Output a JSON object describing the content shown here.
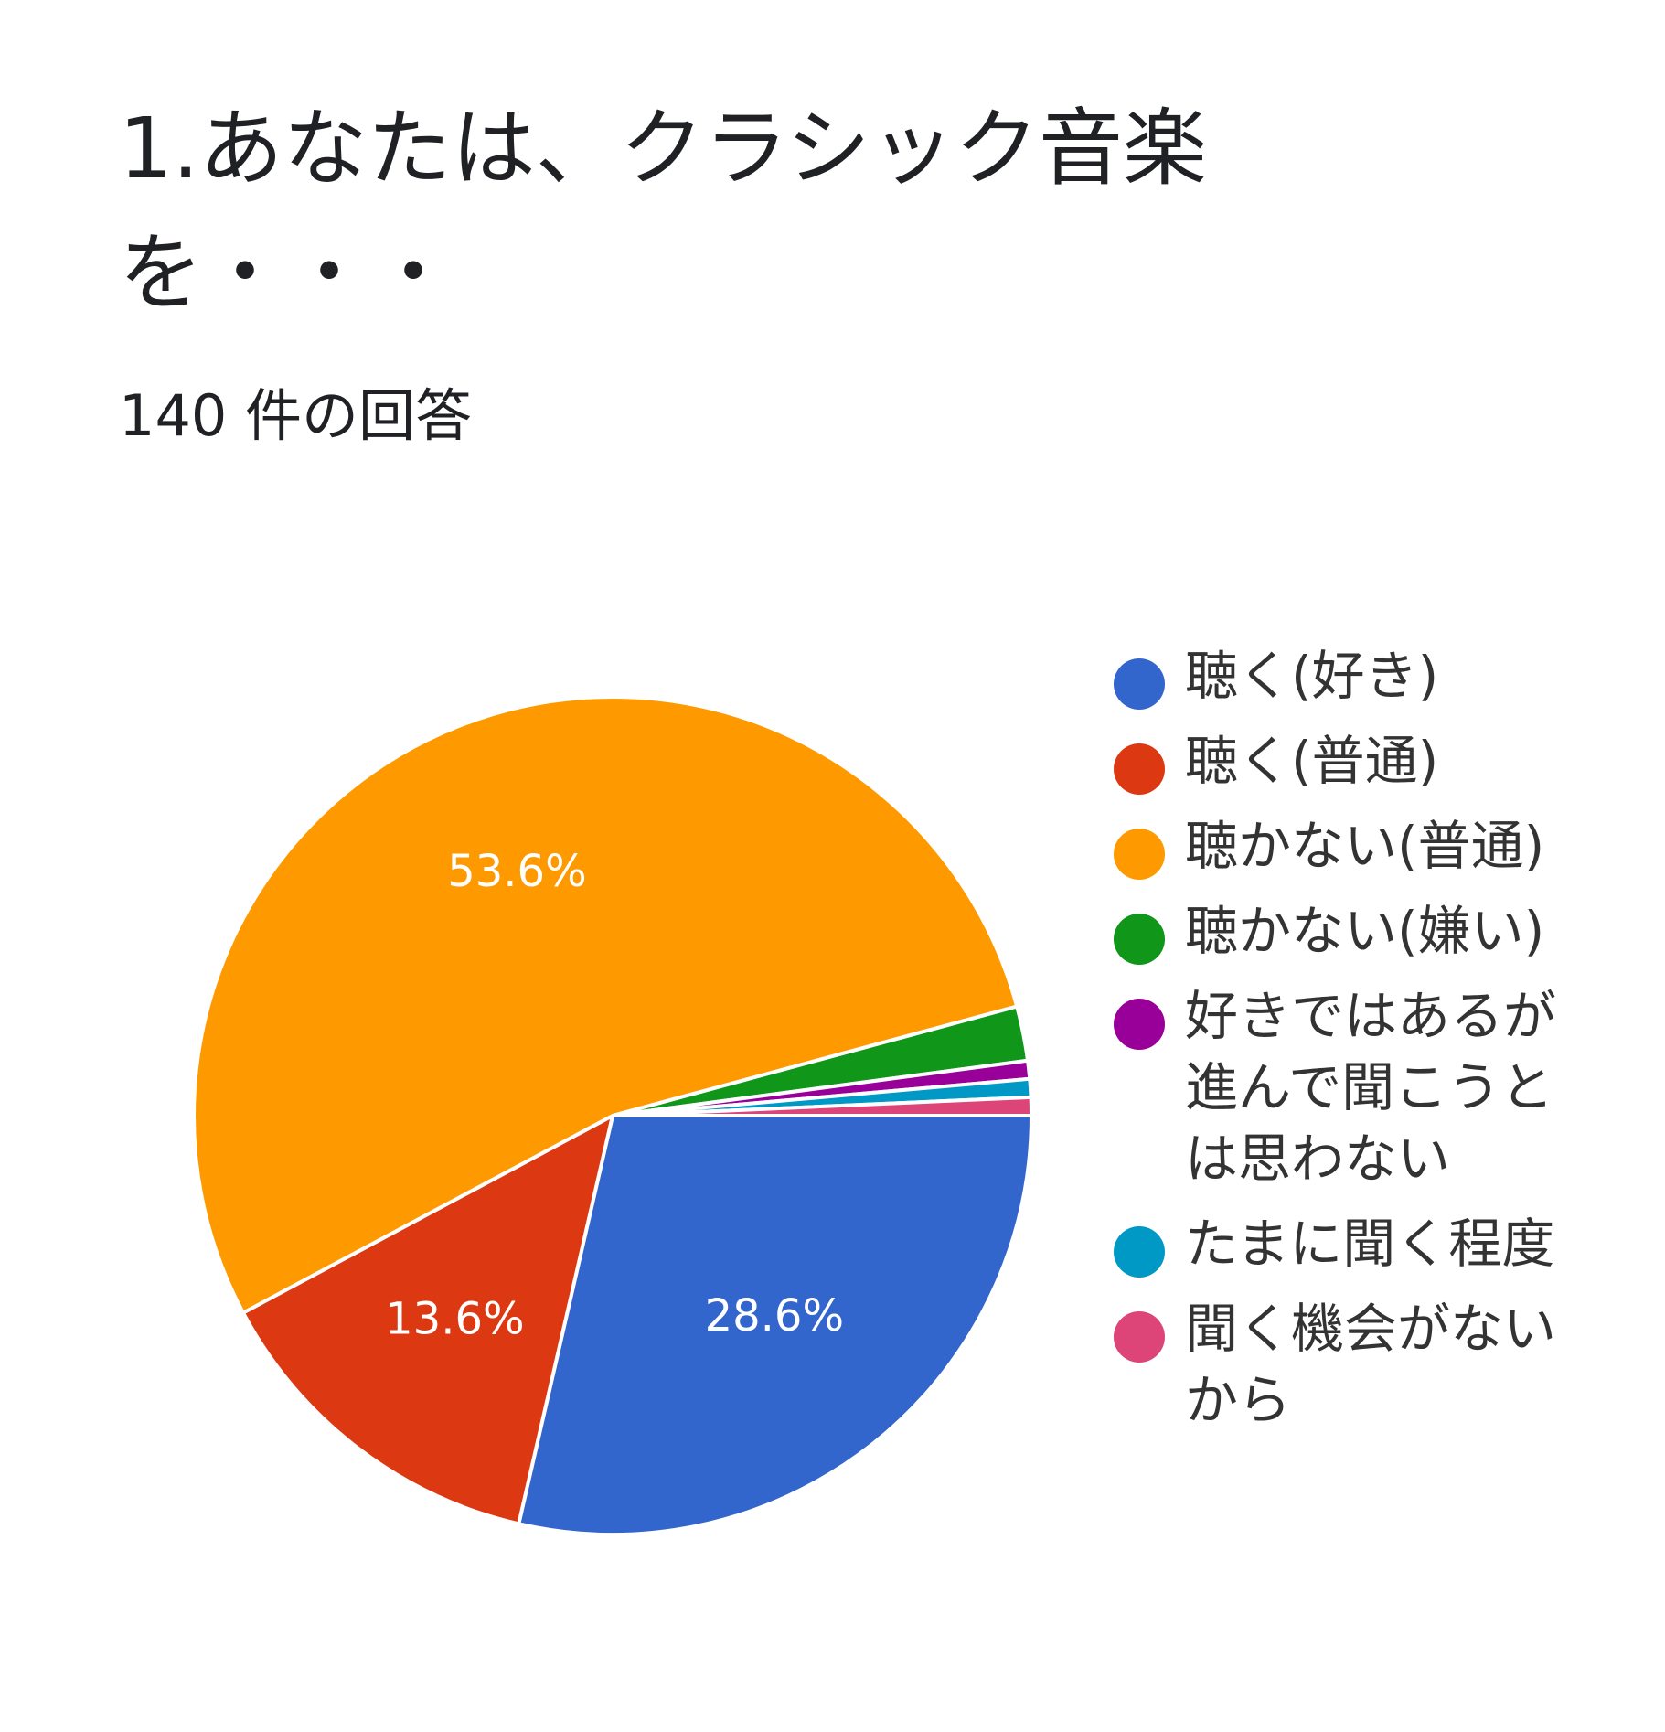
{
  "header": {
    "title": "1.あなたは、クラシック音楽を・・・",
    "response_count": "140 件の回答"
  },
  "chart_data": {
    "type": "pie",
    "title": "1.あなたは、クラシック音楽を・・・",
    "subtitle": "140 件の回答",
    "legend_position": "right",
    "slices": [
      {
        "label": "聴く(好き)",
        "value": 28.6,
        "display": "28.6%",
        "color": "#3366cc"
      },
      {
        "label": "聴く(普通)",
        "value": 13.6,
        "display": "13.6%",
        "color": "#dc3912"
      },
      {
        "label": "聴かない(普通)",
        "value": 53.6,
        "display": "53.6%",
        "color": "#ff9900"
      },
      {
        "label": "聴かない(嫌い)",
        "value": 2.1,
        "display": "",
        "color": "#109618"
      },
      {
        "label": "好きではあるが進んで聞こうとは思わない",
        "value": 0.7,
        "display": "",
        "color": "#990099"
      },
      {
        "label": "たまに聞く程度",
        "value": 0.7,
        "display": "",
        "color": "#0099c6"
      },
      {
        "label": "聞く機会がないから",
        "value": 0.7,
        "display": "",
        "color": "#dd4477"
      }
    ]
  }
}
